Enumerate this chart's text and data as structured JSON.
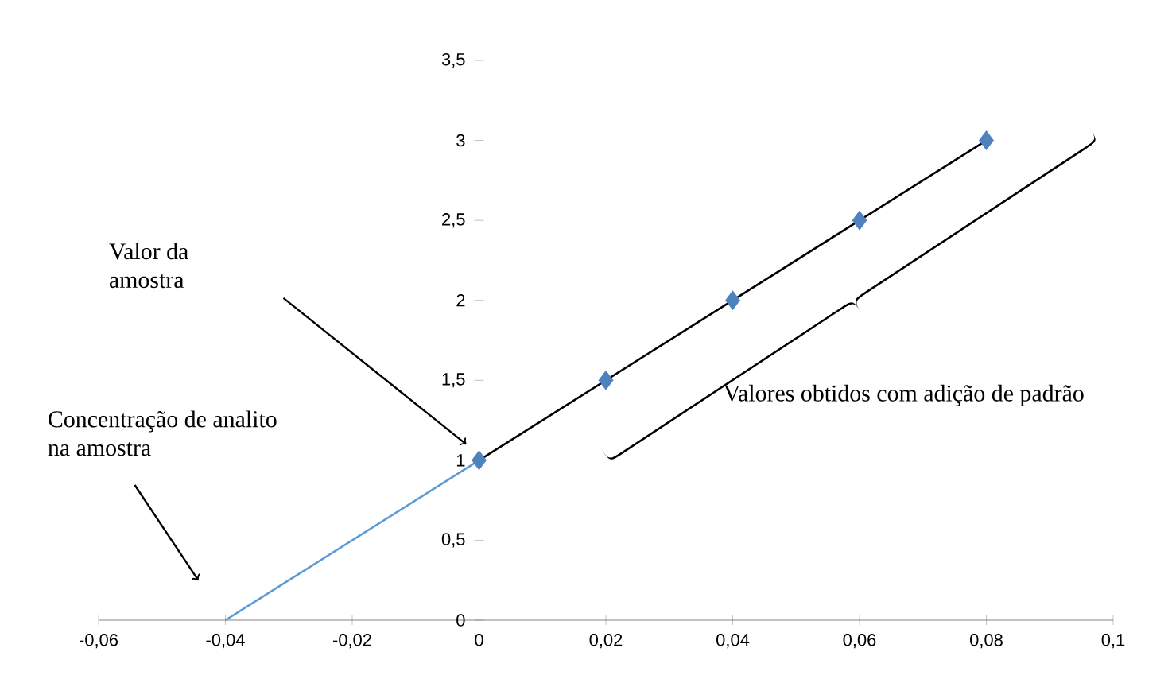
{
  "chart_data": {
    "type": "scatter",
    "series": [
      {
        "x": [
          0,
          0.02,
          0.04,
          0.06,
          0.08
        ],
        "values": [
          1,
          1.5,
          2,
          2.5,
          3
        ],
        "color": "#4f81bd",
        "marker": "diamond"
      },
      {
        "type": "line",
        "x": [
          0,
          0.08
        ],
        "values": [
          1,
          3
        ],
        "color": "#000000",
        "marker": "none"
      },
      {
        "type": "line",
        "x": [
          -0.04,
          0
        ],
        "values": [
          0,
          1
        ],
        "color": "#5b9bd5",
        "marker": "none"
      }
    ],
    "xlim": [
      -0.06,
      0.1
    ],
    "xticks": [
      {
        "value": -0.06,
        "label": "-0,06"
      },
      {
        "value": -0.04,
        "label": "-0,04"
      },
      {
        "value": -0.02,
        "label": "-0,02"
      },
      0,
      {
        "value": 0.02,
        "label": "0,02"
      },
      {
        "value": 0.04,
        "label": "0,04"
      },
      {
        "value": 0.06,
        "label": "0,06"
      },
      {
        "value": 0.08,
        "label": "0,08"
      },
      {
        "value": 0.1,
        "label": "0,1"
      }
    ],
    "ylim": [
      0,
      3.5
    ],
    "yticks": [
      0,
      {
        "value": 0.5,
        "label": "0,5"
      },
      1,
      {
        "value": 1.5,
        "label": "1,5"
      },
      2,
      {
        "value": 2.5,
        "label": "2,5"
      },
      3,
      {
        "value": 3.5,
        "label": "3,5"
      }
    ],
    "grid": false,
    "annotations": [
      "Valor da amostra",
      "Concentração de analito na amostra",
      "Valores obtidos com adição de padrão"
    ]
  }
}
